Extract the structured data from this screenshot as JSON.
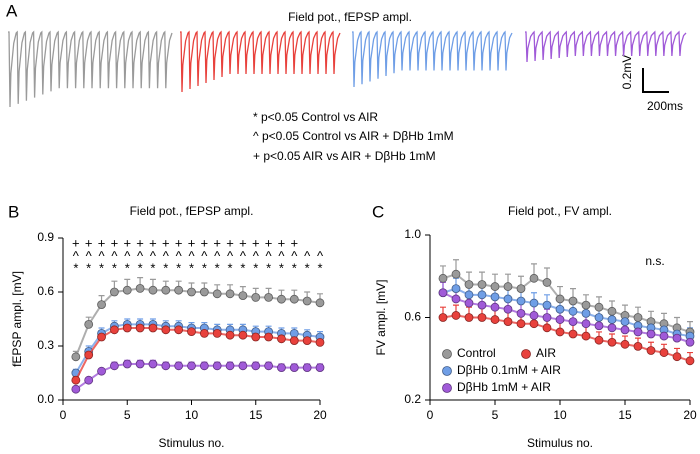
{
  "panel_a": {
    "label": "A",
    "title": "Field pot., fEPSP ampl.",
    "trace_colors": [
      "#9a9a9a",
      "#e8413c",
      "#6f9ee6",
      "#a05ad8"
    ],
    "scale_y": "0.2mV",
    "scale_x": "200ms",
    "notes": [
      "* p<0.05 Control vs AIR",
      "^ p<0.05 Control vs AIR + DβHb 1mM",
      "+ p<0.05 AIR vs AIR + DβHb 1mM"
    ]
  },
  "chart_data": [
    {
      "type": "line",
      "panel": "B",
      "title": "Field pot., fEPSP ampl.",
      "x_label": "Stimulus no.",
      "y_label": "fEPSP ampl. [mV]",
      "legend": false,
      "x": [
        1,
        2,
        3,
        4,
        5,
        6,
        7,
        8,
        9,
        10,
        11,
        12,
        13,
        14,
        15,
        16,
        17,
        18,
        19,
        20
      ],
      "xlim": [
        0,
        20
      ],
      "xticks": [
        0,
        5,
        10,
        15,
        20
      ],
      "ylim": [
        0,
        0.9
      ],
      "yticks": [
        {
          "value": 0,
          "label": "0.0"
        },
        0.3,
        0.6,
        0.9
      ],
      "series": [
        {
          "color": "#9a9a9a",
          "values": [
            0.24,
            0.42,
            0.53,
            0.6,
            0.61,
            0.62,
            0.61,
            0.61,
            0.61,
            0.6,
            0.6,
            0.59,
            0.59,
            0.58,
            0.57,
            0.57,
            0.56,
            0.56,
            0.55,
            0.54
          ],
          "errors": [
            0.03,
            0.04,
            0.05,
            0.06,
            0.06,
            0.06,
            0.06,
            0.05,
            0.05,
            0.05,
            0.05,
            0.05,
            0.05,
            0.05,
            0.05,
            0.05,
            0.05,
            0.05,
            0.05,
            0.05
          ]
        },
        {
          "color": "#6f9ee6",
          "values": [
            0.15,
            0.27,
            0.37,
            0.41,
            0.42,
            0.42,
            0.42,
            0.41,
            0.41,
            0.4,
            0.4,
            0.39,
            0.39,
            0.39,
            0.38,
            0.38,
            0.37,
            0.37,
            0.36,
            0.35
          ],
          "errors": [
            0.02,
            0.03,
            0.03,
            0.03,
            0.03,
            0.03,
            0.03,
            0.03,
            0.03,
            0.03,
            0.03,
            0.03,
            0.03,
            0.03,
            0.03,
            0.03,
            0.03,
            0.03,
            0.03,
            0.03
          ]
        },
        {
          "color": "#e8413c",
          "values": [
            0.11,
            0.25,
            0.35,
            0.39,
            0.4,
            0.4,
            0.4,
            0.39,
            0.39,
            0.38,
            0.37,
            0.37,
            0.36,
            0.36,
            0.35,
            0.35,
            0.34,
            0.33,
            0.33,
            0.32
          ],
          "errors": [
            0.02,
            0.02,
            0.02,
            0.02,
            0.02,
            0.02,
            0.02,
            0.02,
            0.02,
            0.02,
            0.02,
            0.02,
            0.02,
            0.02,
            0.02,
            0.02,
            0.02,
            0.02,
            0.02,
            0.02
          ]
        },
        {
          "color": "#a05ad8",
          "values": [
            0.06,
            0.11,
            0.16,
            0.19,
            0.2,
            0.2,
            0.2,
            0.19,
            0.19,
            0.19,
            0.19,
            0.19,
            0.19,
            0.19,
            0.19,
            0.19,
            0.18,
            0.18,
            0.18,
            0.18
          ],
          "errors": [
            0.01,
            0.01,
            0.01,
            0.02,
            0.02,
            0.02,
            0.02,
            0.02,
            0.02,
            0.02,
            0.02,
            0.02,
            0.02,
            0.02,
            0.02,
            0.02,
            0.02,
            0.02,
            0.02,
            0.02
          ]
        }
      ],
      "sig_rows": [
        {
          "symbol": "+",
          "color": "#000000",
          "x": [
            1,
            2,
            3,
            4,
            5,
            6,
            7,
            8,
            9,
            10,
            11,
            12,
            13
          ]
        },
        {
          "symbol": "+",
          "color": "#bbbbbb",
          "x": [
            14,
            15,
            16,
            17,
            18
          ]
        },
        {
          "symbol": "^",
          "color": "#000000",
          "x": [
            1,
            2,
            3,
            4,
            5,
            6,
            7,
            8,
            9,
            10,
            11,
            12,
            13,
            14,
            15,
            16,
            17,
            18,
            19,
            20
          ]
        },
        {
          "symbol": "*",
          "color": "#000000",
          "x": [
            1,
            2,
            3,
            4,
            5,
            6,
            7,
            8,
            9,
            10,
            11,
            12,
            13,
            14,
            15,
            16,
            17,
            18,
            19,
            20
          ]
        }
      ]
    },
    {
      "type": "line",
      "panel": "C",
      "title": "Field pot., FV ampl.",
      "x_label": "Stimulus no.",
      "y_label": "FV ampl. [mV]",
      "legend": "lower left",
      "annotation": "n.s.",
      "x": [
        1,
        2,
        3,
        4,
        5,
        6,
        7,
        8,
        9,
        10,
        11,
        12,
        13,
        14,
        15,
        16,
        17,
        18,
        19,
        20
      ],
      "xlim": [
        0,
        20
      ],
      "xticks": [
        0,
        5,
        10,
        15,
        20
      ],
      "ylim": [
        0.2,
        1.0
      ],
      "yticks": [
        0.2,
        0.6,
        {
          "value": 1,
          "label": "1.0"
        }
      ],
      "series": [
        {
          "name": "Control",
          "color": "#9a9a9a",
          "values": [
            0.79,
            0.81,
            0.76,
            0.76,
            0.75,
            0.75,
            0.74,
            0.79,
            0.77,
            0.69,
            0.68,
            0.66,
            0.65,
            0.63,
            0.61,
            0.6,
            0.58,
            0.57,
            0.55,
            0.53
          ],
          "errors": [
            0.06,
            0.07,
            0.06,
            0.06,
            0.06,
            0.06,
            0.06,
            0.07,
            0.07,
            0.06,
            0.06,
            0.05,
            0.05,
            0.05,
            0.05,
            0.05,
            0.05,
            0.05,
            0.05,
            0.05
          ]
        },
        {
          "name": "AIR",
          "color": "#e8413c",
          "values": [
            0.6,
            0.61,
            0.6,
            0.6,
            0.59,
            0.58,
            0.57,
            0.57,
            0.55,
            0.53,
            0.52,
            0.51,
            0.49,
            0.48,
            0.47,
            0.46,
            0.44,
            0.43,
            0.41,
            0.39
          ],
          "errors": [
            0.05,
            0.05,
            0.05,
            0.05,
            0.05,
            0.05,
            0.05,
            0.05,
            0.05,
            0.05,
            0.05,
            0.05,
            0.04,
            0.04,
            0.04,
            0.04,
            0.04,
            0.04,
            0.04,
            0.04
          ]
        },
        {
          "name": "DβHb 0.1mM + AIR",
          "color": "#6f9ee6",
          "values": [
            0.72,
            0.74,
            0.71,
            0.71,
            0.7,
            0.69,
            0.68,
            0.67,
            0.66,
            0.64,
            0.63,
            0.62,
            0.6,
            0.59,
            0.58,
            0.56,
            0.55,
            0.54,
            0.52,
            0.51
          ],
          "errors": [
            0.05,
            0.05,
            0.05,
            0.05,
            0.05,
            0.05,
            0.05,
            0.05,
            0.05,
            0.05,
            0.05,
            0.05,
            0.05,
            0.05,
            0.04,
            0.04,
            0.04,
            0.04,
            0.04,
            0.04
          ]
        },
        {
          "name": "DβHb 1mM + AIR",
          "color": "#a05ad8",
          "values": [
            0.72,
            0.69,
            0.67,
            0.66,
            0.65,
            0.64,
            0.62,
            0.61,
            0.6,
            0.59,
            0.58,
            0.57,
            0.56,
            0.55,
            0.54,
            0.53,
            0.52,
            0.51,
            0.5,
            0.48
          ],
          "errors": [
            0.05,
            0.05,
            0.05,
            0.05,
            0.05,
            0.05,
            0.05,
            0.05,
            0.04,
            0.04,
            0.04,
            0.04,
            0.04,
            0.04,
            0.04,
            0.04,
            0.04,
            0.04,
            0.04,
            0.04
          ]
        }
      ]
    }
  ]
}
